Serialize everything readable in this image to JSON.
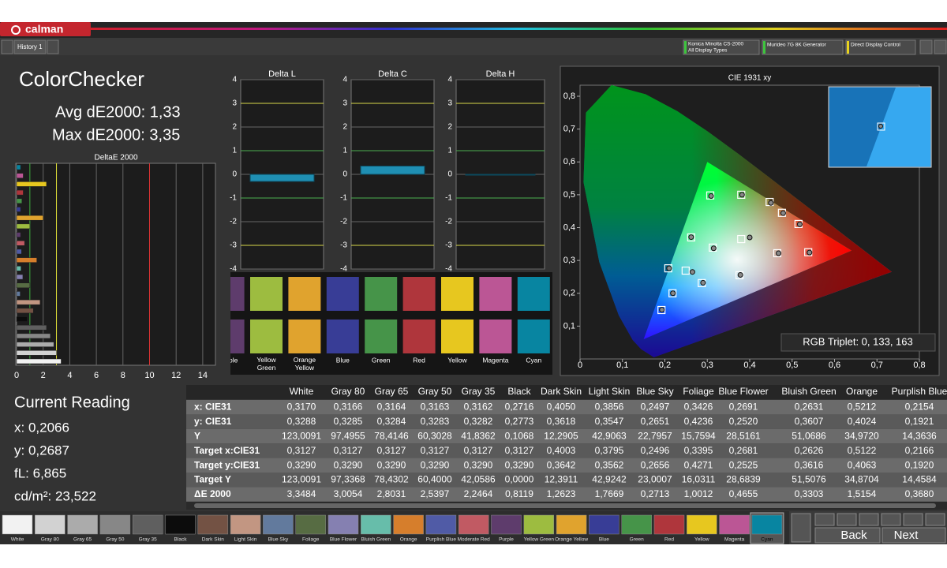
{
  "header": {
    "app": "calman",
    "tab": "History 1",
    "devices": [
      {
        "name": "Konica Minolta CS-2000",
        "sub": "All Display Types",
        "color": "#3ec43e"
      },
      {
        "name": "Murideo 7G 8K Generator",
        "color": "#3ec43e"
      },
      {
        "name": "Direct Display Control",
        "color": "#e8d21e"
      }
    ]
  },
  "summary": {
    "title": "ColorChecker",
    "avg": "Avg dE2000: 1,33",
    "max": "Max dE2000: 3,35"
  },
  "patches": [
    {
      "name": "White",
      "color": "#f2f2f2"
    },
    {
      "name": "Gray 80",
      "color": "#d2d2d2"
    },
    {
      "name": "Gray 65",
      "color": "#ababab"
    },
    {
      "name": "Gray 50",
      "color": "#878787"
    },
    {
      "name": "Gray 35",
      "color": "#5f5f5f"
    },
    {
      "name": "Black",
      "color": "#0c0c0c"
    },
    {
      "name": "Dark Skin",
      "color": "#735244"
    },
    {
      "name": "Light Skin",
      "color": "#c29682"
    },
    {
      "name": "Blue Sky",
      "color": "#627a9d"
    },
    {
      "name": "Foliage",
      "color": "#576c43"
    },
    {
      "name": "Blue Flower",
      "color": "#8580b1"
    },
    {
      "name": "Bluish Green",
      "color": "#67bdaa"
    },
    {
      "name": "Orange",
      "color": "#d67e2c"
    },
    {
      "name": "Purplish Blue",
      "color": "#505ba6"
    },
    {
      "name": "Moderate Red",
      "color": "#c15a63"
    },
    {
      "name": "Purple",
      "color": "#5e3c6c"
    },
    {
      "name": "Yellow Green",
      "color": "#9dbc40"
    },
    {
      "name": "Orange Yellow",
      "color": "#e0a32e"
    },
    {
      "name": "Blue",
      "color": "#383d96"
    },
    {
      "name": "Green",
      "color": "#469449"
    },
    {
      "name": "Red",
      "color": "#af363c"
    },
    {
      "name": "Yellow",
      "color": "#e7c71f"
    },
    {
      "name": "Magenta",
      "color": "#bb5695"
    },
    {
      "name": "Cyan",
      "color": "#0885a1"
    }
  ],
  "deltae_chart": {
    "type": "bar",
    "title": "DeltaE 2000",
    "xlim": [
      0,
      14.6
    ],
    "xticks": [
      0,
      2,
      4,
      6,
      8,
      10,
      12,
      14
    ],
    "values": [
      3.35,
      3.0,
      2.8,
      2.54,
      2.25,
      0.8,
      1.26,
      1.77,
      0.27,
      1.0,
      0.47,
      0.33,
      1.52,
      0.37,
      0.6,
      0.3,
      1.0,
      2.0,
      0.3,
      0.4,
      0.5,
      2.25,
      0.5,
      0.3
    ],
    "limits": [
      {
        "value": 1,
        "color": "#3fae3f"
      },
      {
        "value": 3,
        "color": "#e3e33a"
      },
      {
        "value": 10,
        "color": "#d33"
      }
    ]
  },
  "delta_charts": {
    "type": "bar",
    "ylim": [
      -4,
      4
    ],
    "yticks": [
      -4,
      -3,
      -2,
      -1,
      0,
      1,
      2,
      3,
      4
    ],
    "tick_colors": [
      "#666",
      "#d8d84a",
      "#666",
      "#4caf50",
      "#666",
      "#4caf50",
      "#666",
      "#d8d84a",
      "#666"
    ],
    "color": "#1f8fb3",
    "charts": [
      {
        "title": "Delta L",
        "value": -0.3
      },
      {
        "title": "Delta C",
        "value": 0.35
      },
      {
        "title": "Delta H",
        "value": -0.03
      }
    ]
  },
  "cie": {
    "type": "scatter",
    "title": "CIE 1931 xy",
    "xlim": [
      0,
      0.8
    ],
    "ylim": [
      0,
      0.8
    ],
    "xticks": [
      0,
      {
        "value": 0.1,
        "label": "0,1"
      },
      {
        "value": 0.2,
        "label": "0,2"
      },
      {
        "value": 0.3,
        "label": "0,3"
      },
      {
        "value": 0.4,
        "label": "0,4"
      },
      {
        "value": 0.5,
        "label": "0,5"
      },
      {
        "value": 0.6,
        "label": "0,6"
      },
      {
        "value": 0.7,
        "label": "0,7"
      },
      {
        "value": 0.8,
        "label": "0,8"
      }
    ],
    "yticks": [
      {
        "value": 0.1,
        "label": "0,1"
      },
      {
        "value": 0.2,
        "label": "0,2"
      },
      {
        "value": 0.3,
        "label": "0,3"
      },
      {
        "value": 0.4,
        "label": "0,4"
      },
      {
        "value": 0.5,
        "label": "0,5"
      },
      {
        "value": 0.6,
        "label": "0,6"
      },
      {
        "value": 0.7,
        "label": "0,7"
      },
      {
        "value": 0.8,
        "label": "0,8"
      }
    ],
    "target_x": [
      0.208,
      0.192,
      0.218,
      0.249,
      0.287,
      0.313,
      0.376,
      0.38,
      0.38,
      0.447,
      0.476,
      0.515,
      0.465,
      0.538,
      0.307,
      0.262
    ],
    "target_y": [
      0.276,
      0.149,
      0.2,
      0.269,
      0.231,
      0.339,
      0.255,
      0.365,
      0.5,
      0.478,
      0.445,
      0.411,
      0.322,
      0.325,
      0.498,
      0.37
    ],
    "measured_x": [
      0.21,
      0.193,
      0.219,
      0.265,
      0.29,
      0.315,
      0.378,
      0.4,
      0.382,
      0.45,
      0.479,
      0.518,
      0.468,
      0.541,
      0.309,
      0.262
    ],
    "measured_y": [
      0.276,
      0.15,
      0.2,
      0.265,
      0.232,
      0.337,
      0.256,
      0.37,
      0.5,
      0.475,
      0.444,
      0.41,
      0.322,
      0.324,
      0.496,
      0.371
    ],
    "rgb_triplet": "RGB Triplet: 0, 133, 163"
  },
  "current_reading": {
    "title": "Current Reading",
    "lines": [
      "x: 0,2066",
      "y: 0,2687",
      "fL: 6,865",
      "cd/m²: 23,522"
    ]
  },
  "table": {
    "columns": [
      "White",
      "Gray 80",
      "Gray 65",
      "Gray 50",
      "Gray 35",
      "Black",
      "Dark Skin",
      "Light Skin",
      "Blue Sky",
      "Foliage",
      "Blue Flower",
      "Bluish Green",
      "Orange",
      "Purplish Blue"
    ],
    "rows": [
      [
        "x: CIE31",
        "0,3170",
        "0,3166",
        "0,3164",
        "0,3163",
        "0,3162",
        "0,2716",
        "0,4050",
        "0,3856",
        "0,2497",
        "0,3426",
        "0,2691",
        "0,2631",
        "0,5212",
        "0,2154"
      ],
      [
        "y: CIE31",
        "0,3288",
        "0,3285",
        "0,3284",
        "0,3283",
        "0,3282",
        "0,2773",
        "0,3618",
        "0,3547",
        "0,2651",
        "0,4236",
        "0,2520",
        "0,3607",
        "0,4024",
        "0,1921"
      ],
      [
        "Y",
        "123,0091",
        "97,4955",
        "78,4146",
        "60,3028",
        "41,8362",
        "0,1068",
        "12,2905",
        "42,9063",
        "22,7957",
        "15,7594",
        "28,5161",
        "51,0686",
        "34,9720",
        "14,3636"
      ],
      [
        "Target x:CIE31",
        "0,3127",
        "0,3127",
        "0,3127",
        "0,3127",
        "0,3127",
        "0,3127",
        "0,4003",
        "0,3795",
        "0,2496",
        "0,3395",
        "0,2681",
        "0,2626",
        "0,5122",
        "0,2166"
      ],
      [
        "Target y:CIE31",
        "0,3290",
        "0,3290",
        "0,3290",
        "0,3290",
        "0,3290",
        "0,3290",
        "0,3642",
        "0,3562",
        "0,2656",
        "0,4271",
        "0,2525",
        "0,3616",
        "0,4063",
        "0,1920"
      ],
      [
        "Target Y",
        "123,0091",
        "97,3368",
        "78,4302",
        "60,4000",
        "42,0586",
        "0,0000",
        "12,3911",
        "42,9242",
        "23,0007",
        "16,0311",
        "28,6839",
        "51,5076",
        "34,8704",
        "14,4584"
      ],
      [
        "ΔE 2000",
        "3,3484",
        "3,0054",
        "2,8031",
        "2,5397",
        "2,2464",
        "0,8119",
        "1,2623",
        "1,7669",
        "0,2713",
        "1,0012",
        "0,4655",
        "0,3303",
        "1,5154",
        "0,3680"
      ]
    ]
  },
  "footer": {
    "back": "Back",
    "next": "Next"
  }
}
